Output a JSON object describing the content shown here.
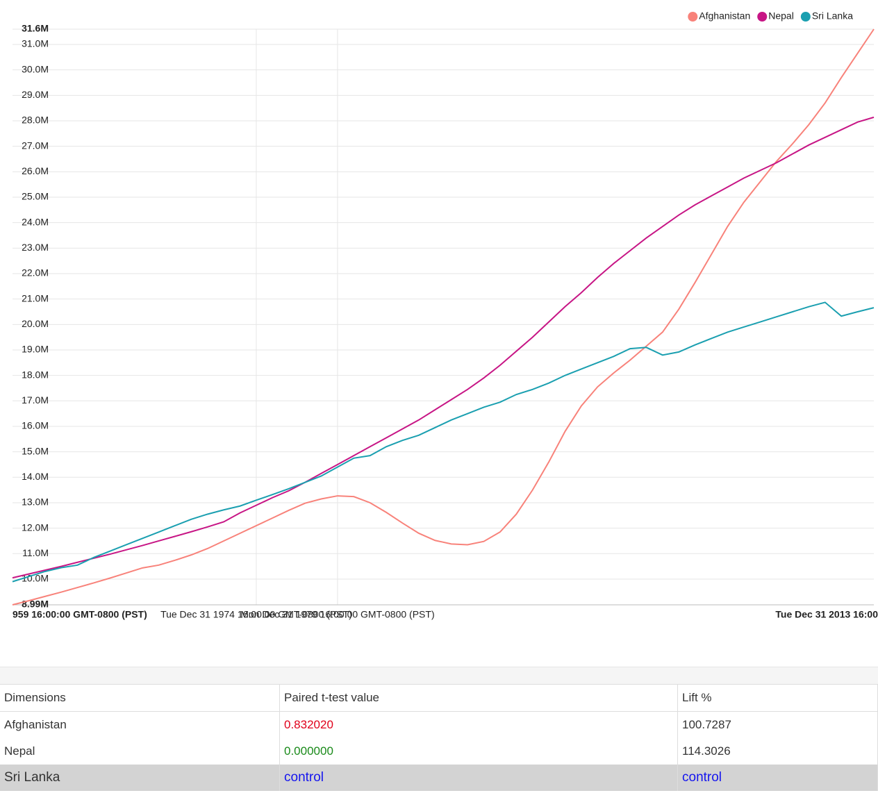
{
  "chart_data": {
    "type": "line",
    "x": [
      1960,
      1961,
      1962,
      1963,
      1964,
      1965,
      1966,
      1967,
      1968,
      1969,
      1970,
      1971,
      1972,
      1973,
      1974,
      1975,
      1976,
      1977,
      1978,
      1979,
      1980,
      1981,
      1982,
      1983,
      1984,
      1985,
      1986,
      1987,
      1988,
      1989,
      1990,
      1991,
      1992,
      1993,
      1994,
      1995,
      1996,
      1997,
      1998,
      1999,
      2000,
      2001,
      2002,
      2003,
      2004,
      2005,
      2006,
      2007,
      2008,
      2009,
      2010,
      2011,
      2012,
      2013
    ],
    "xlim": [
      1960,
      2013
    ],
    "xticks": [
      {
        "value": 1960,
        "label": "959 16:00:00 GMT-0800 (PST)"
      },
      {
        "value": 1975,
        "label": "Tue Dec 31 1974 16:00:00 GMT-0800 (PST)"
      },
      {
        "value": 1980,
        "label": "Mon Dec 31 1979 16:00:00 GMT-0800 (PST)"
      },
      {
        "value": 2013,
        "label": "Tue Dec 31 2013 16:00"
      }
    ],
    "ylim": [
      8.99,
      31.6
    ],
    "yticks": [
      {
        "value": 8.99,
        "label": "8.99M"
      },
      {
        "value": 10,
        "label": "10.0M"
      },
      {
        "value": 11,
        "label": "11.0M"
      },
      {
        "value": 12,
        "label": "12.0M"
      },
      {
        "value": 13,
        "label": "13.0M"
      },
      {
        "value": 14,
        "label": "14.0M"
      },
      {
        "value": 15,
        "label": "15.0M"
      },
      {
        "value": 16,
        "label": "16.0M"
      },
      {
        "value": 17,
        "label": "17.0M"
      },
      {
        "value": 18,
        "label": "18.0M"
      },
      {
        "value": 19,
        "label": "19.0M"
      },
      {
        "value": 20,
        "label": "20.0M"
      },
      {
        "value": 21,
        "label": "21.0M"
      },
      {
        "value": 22,
        "label": "22.0M"
      },
      {
        "value": 23,
        "label": "23.0M"
      },
      {
        "value": 24,
        "label": "24.0M"
      },
      {
        "value": 25,
        "label": "25.0M"
      },
      {
        "value": 26,
        "label": "26.0M"
      },
      {
        "value": 27,
        "label": "27.0M"
      },
      {
        "value": 28,
        "label": "28.0M"
      },
      {
        "value": 29,
        "label": "29.0M"
      },
      {
        "value": 30,
        "label": "30.0M"
      },
      {
        "value": 31,
        "label": "31.0M"
      },
      {
        "value": 31.6,
        "label": "31.6M"
      }
    ],
    "grid": true,
    "legend": "top-right",
    "series": [
      {
        "name": "Afghanistan",
        "color": "#f8827a",
        "values": [
          8.99,
          9.15,
          9.32,
          9.49,
          9.67,
          9.85,
          10.04,
          10.24,
          10.44,
          10.55,
          10.74,
          10.95,
          11.2,
          11.5,
          11.8,
          12.1,
          12.4,
          12.7,
          12.98,
          13.15,
          13.27,
          13.24,
          13.0,
          12.62,
          12.2,
          11.8,
          11.52,
          11.38,
          11.35,
          11.48,
          11.85,
          12.55,
          13.5,
          14.6,
          15.8,
          16.8,
          17.55,
          18.1,
          18.6,
          19.15,
          19.7,
          20.6,
          21.65,
          22.75,
          23.85,
          24.8,
          25.6,
          26.4,
          27.1,
          27.85,
          28.7,
          29.7,
          30.65,
          31.6
        ]
      },
      {
        "name": "Nepal",
        "color": "#c71585",
        "values": [
          10.05,
          10.2,
          10.35,
          10.5,
          10.66,
          10.82,
          10.98,
          11.15,
          11.32,
          11.5,
          11.68,
          11.86,
          12.05,
          12.25,
          12.6,
          12.9,
          13.2,
          13.47,
          13.8,
          14.15,
          14.5,
          14.85,
          15.2,
          15.55,
          15.9,
          16.25,
          16.65,
          17.05,
          17.45,
          17.9,
          18.4,
          18.95,
          19.5,
          20.1,
          20.7,
          21.25,
          21.85,
          22.4,
          22.9,
          23.4,
          23.85,
          24.3,
          24.7,
          25.05,
          25.4,
          25.75,
          26.05,
          26.35,
          26.7,
          27.05,
          27.35,
          27.65,
          27.95,
          28.14
        ]
      },
      {
        "name": "Sri Lanka",
        "color": "#1a9fb0",
        "values": [
          9.9,
          10.1,
          10.3,
          10.45,
          10.55,
          10.85,
          11.1,
          11.35,
          11.6,
          11.85,
          12.1,
          12.35,
          12.55,
          12.72,
          12.87,
          13.1,
          13.32,
          13.55,
          13.8,
          14.05,
          14.4,
          14.75,
          14.85,
          15.2,
          15.45,
          15.65,
          15.95,
          16.25,
          16.5,
          16.75,
          16.95,
          17.25,
          17.45,
          17.7,
          18.0,
          18.25,
          18.5,
          18.75,
          19.05,
          19.1,
          18.8,
          18.92,
          19.2,
          19.45,
          19.7,
          19.9,
          20.1,
          20.3,
          20.5,
          20.7,
          20.87,
          20.33,
          20.5,
          20.66
        ]
      }
    ]
  },
  "table": {
    "columns": [
      "Dimensions",
      "Paired t-test value",
      "Lift %"
    ],
    "rows": [
      [
        "Afghanistan",
        "0.832020",
        "100.7287"
      ],
      [
        "Nepal",
        "0.000000",
        "114.3026"
      ],
      [
        "Sri Lanka",
        "control",
        "control"
      ]
    ]
  }
}
